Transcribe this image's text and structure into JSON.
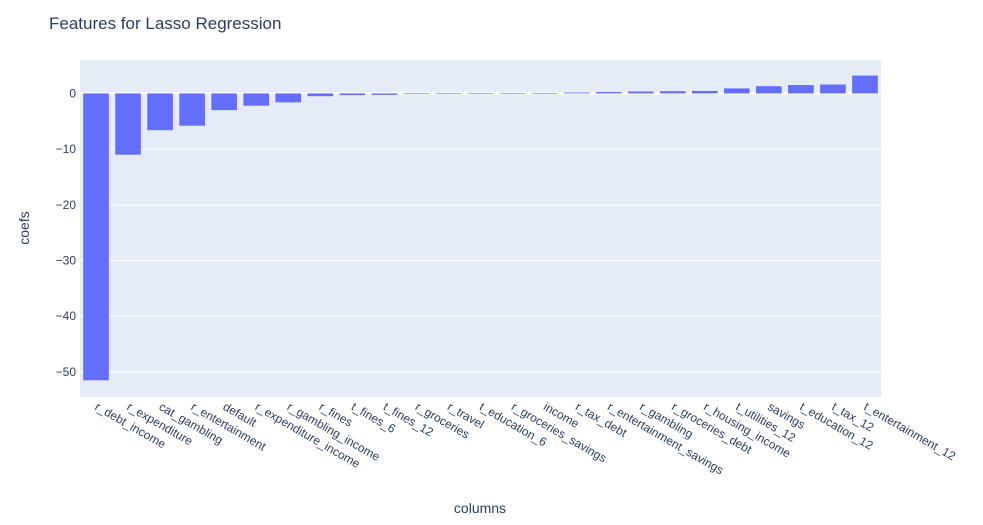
{
  "chart_data": {
    "type": "bar",
    "title": "Features for Lasso Regression",
    "xlabel": "columns",
    "ylabel": "coefs",
    "ylim": [
      -54.5,
      6
    ],
    "yticks": [
      0,
      -10,
      -20,
      -30,
      -40,
      -50
    ],
    "grid": true,
    "bar_color": "#636efa",
    "plot_bg": "#e5ecf6",
    "categories": [
      "r_debt_income",
      "r_expenditure",
      "cat_gambling",
      "r_entertainment",
      "default",
      "r_expenditure_income",
      "r_gambling_income",
      "r_fines",
      "t_fines_6",
      "t_fines_12",
      "r_groceries",
      "r_travel",
      "t_education_6",
      "r_groceries_savings",
      "income",
      "r_tax_debt",
      "r_entertainment_savings",
      "r_gambling",
      "r_groceries_debt",
      "r_housing_income",
      "t_utilities_12",
      "savings",
      "t_education_12",
      "t_tax_12",
      "t_entertainment_12"
    ],
    "values": [
      -51.5,
      -11.0,
      -6.6,
      -5.8,
      -3.0,
      -2.2,
      -1.6,
      -0.5,
      -0.3,
      -0.25,
      -0.1,
      -0.08,
      -0.06,
      -0.05,
      -0.05,
      0.15,
      0.25,
      0.35,
      0.4,
      0.45,
      0.9,
      1.3,
      1.5,
      1.6,
      3.2
    ]
  }
}
